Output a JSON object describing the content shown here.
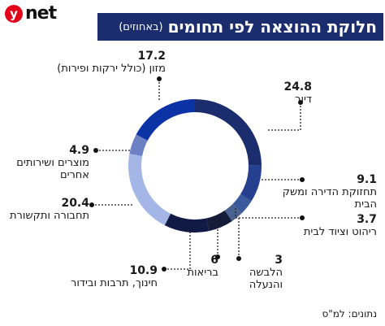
{
  "header": {
    "logo_letter": "y",
    "logo_word": "net",
    "title": "חלוקת ההוצאה לפי תחומים",
    "subtitle": "(באחוזים)"
  },
  "source": "נתונים: למ\"ס",
  "colors": {
    "title_bg": "#1c2d6e",
    "logo_red": "#e3001b"
  },
  "chart_data": {
    "type": "pie",
    "title": "חלוקת ההוצאה לפי תחומים",
    "subtitle": "(באחוזים)",
    "slices": [
      {
        "label": "דיור",
        "value": 24.8,
        "color": "#1c2d6e"
      },
      {
        "label": "תחזוקת הדירה ומשק הבית",
        "value": 9.1,
        "color": "#24408f"
      },
      {
        "label": "ריהוט וציוד לבית",
        "value": 3.7,
        "color": "#3a5a9e"
      },
      {
        "label": "הלבשה והנעלה",
        "value": 3,
        "color": "#4a628f"
      },
      {
        "label": "בריאות",
        "value": 6,
        "color": "#141c3a"
      },
      {
        "label": "חינוך, תרבות ובידור",
        "value": 10.9,
        "color": "#111a45"
      },
      {
        "label": "תחבורה ותקשורת",
        "value": 20.4,
        "color": "#a3b6e6"
      },
      {
        "label": "מוצרים ושירותים אחרים",
        "value": 4.9,
        "color": "#6b81c4"
      },
      {
        "label": "מזון (כולל ירקות ופירות)",
        "value": 17.2,
        "color": "#0c33a6"
      }
    ]
  },
  "labels": [
    {
      "value": "24.8",
      "text": "דיור"
    },
    {
      "value": "9.1",
      "text": "תחזוקת הדירה ומשק הבית"
    },
    {
      "value": "3.7",
      "text": "ריהוט וציוד לבית"
    },
    {
      "value": "3",
      "text": "הלבשה והנעלה"
    },
    {
      "value": "6",
      "text": "בריאות"
    },
    {
      "value": "10.9",
      "text": "חינוך, תרבות ובידור"
    },
    {
      "value": "20.4",
      "text": "תחבורה ותקשורת"
    },
    {
      "value": "4.9",
      "text": "מוצרים ושירותים אחרים"
    },
    {
      "value": "17.2",
      "text": "מזון (כולל ירקות ופירות)"
    }
  ]
}
